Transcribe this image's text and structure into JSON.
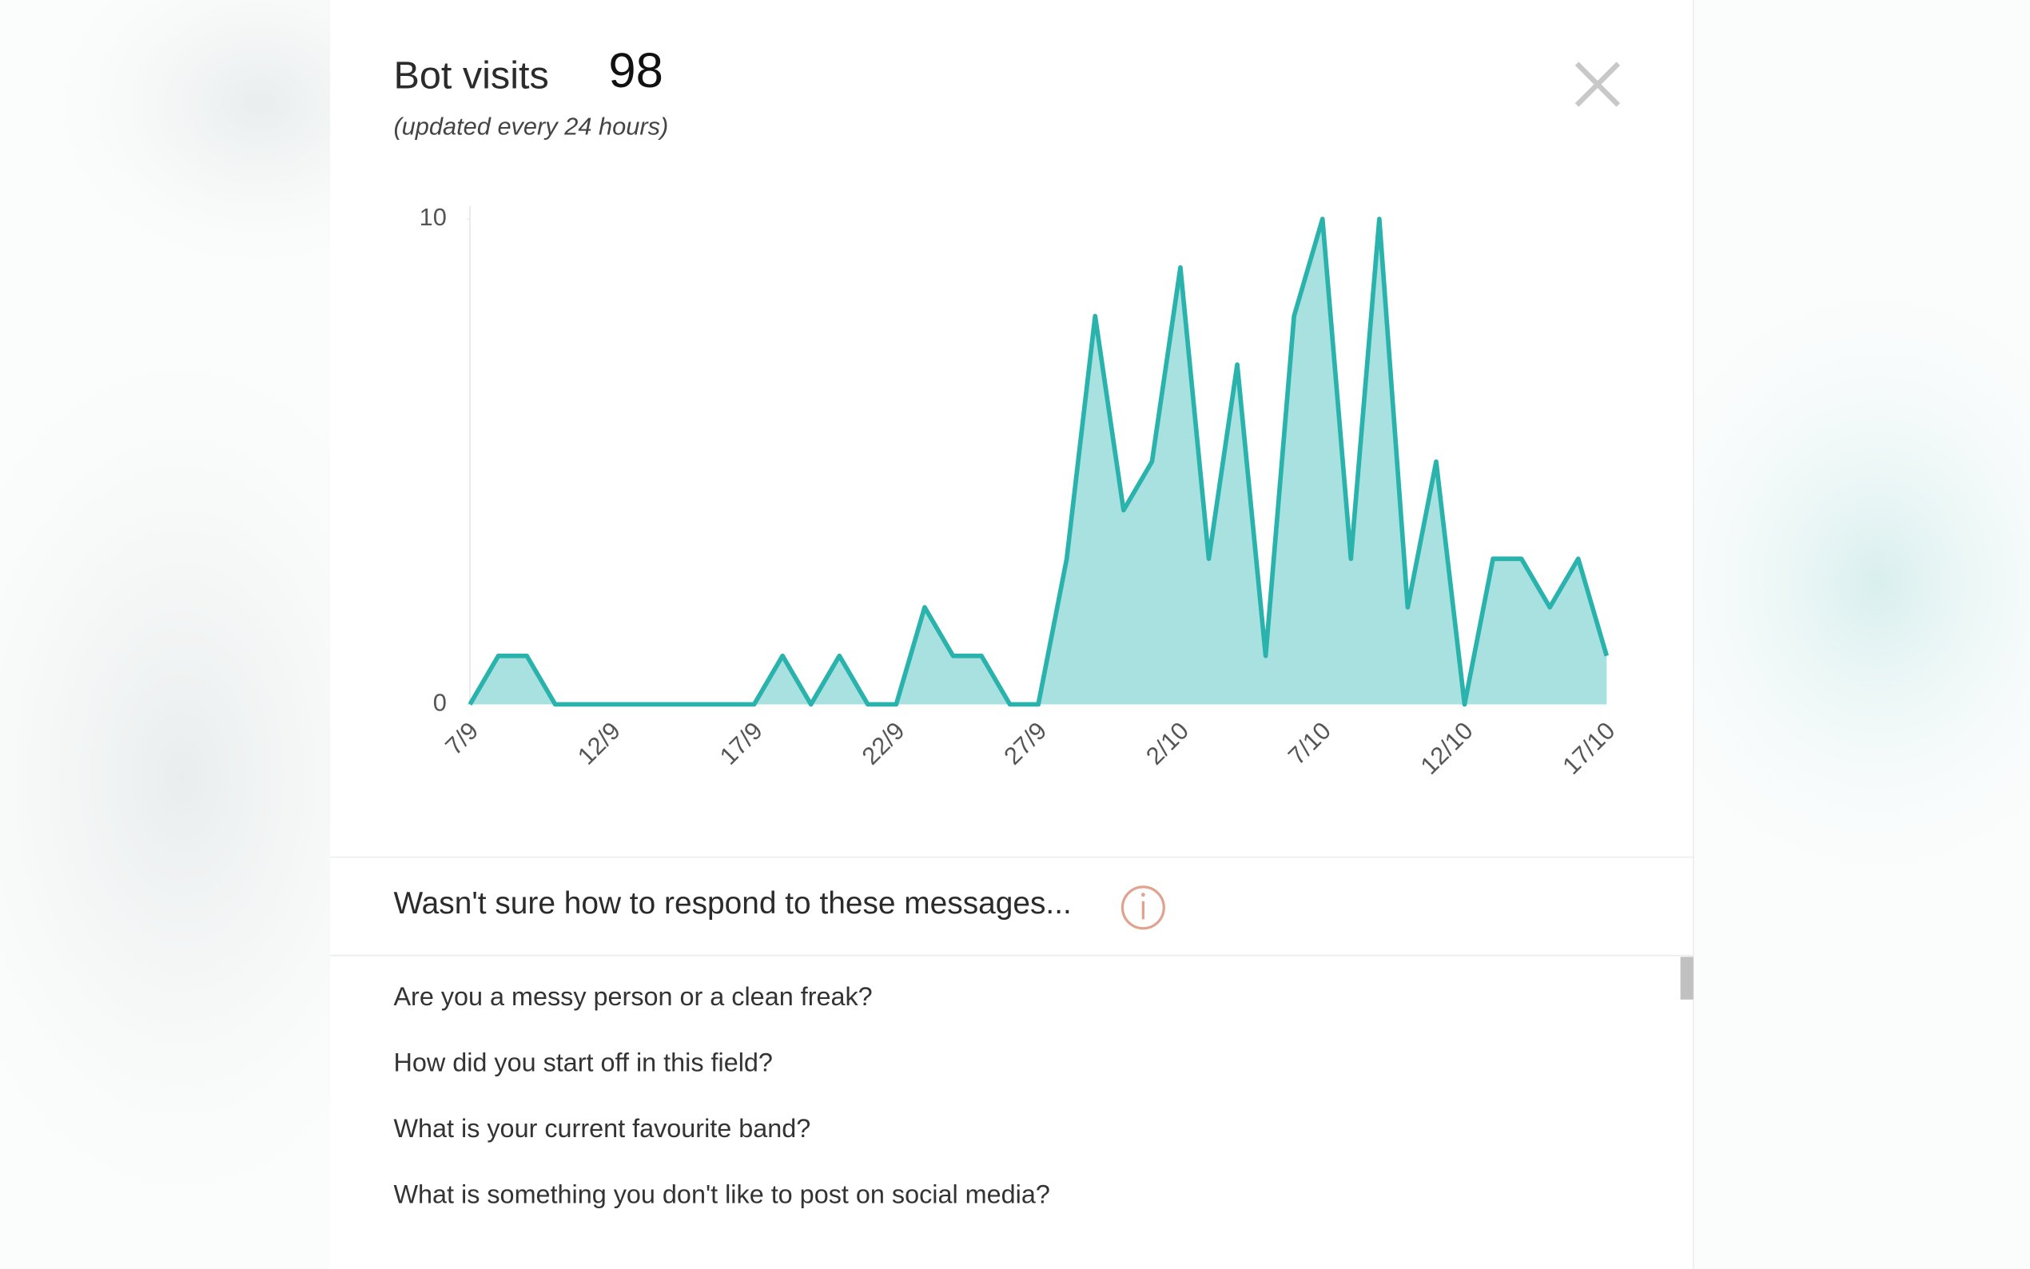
{
  "header": {
    "title": "Bot visits",
    "count": 98,
    "subtitle": "(updated every 24 hours)"
  },
  "chart_data": {
    "type": "area",
    "categories": [
      "7/9",
      null,
      null,
      null,
      null,
      "12/9",
      null,
      null,
      null,
      null,
      "17/9",
      null,
      null,
      null,
      null,
      "22/9",
      null,
      null,
      null,
      null,
      "27/9",
      null,
      null,
      null,
      null,
      "2/10",
      null,
      null,
      null,
      null,
      "7/10",
      null,
      null,
      null,
      null,
      "12/10",
      null,
      null,
      null,
      null,
      "17/10"
    ],
    "values": [
      0,
      1,
      1,
      0,
      0,
      0,
      0,
      0,
      0,
      0,
      0,
      1,
      0,
      1,
      0,
      0,
      2,
      1,
      1,
      0,
      0,
      3,
      8,
      4,
      5,
      9,
      3,
      7,
      1,
      8,
      10,
      3,
      10,
      2,
      5,
      0,
      3,
      3,
      2,
      3,
      1
    ],
    "color": "#2ab3ad",
    "fill": "#a8e1df",
    "ylim": [
      0,
      10
    ],
    "yticks": [
      0,
      10
    ]
  },
  "messages": {
    "heading": "Wasn't sure how to respond to these messages...",
    "items": [
      "Are you a messy person or a clean freak?",
      "How did you start off in this field?",
      "What is your current favourite band?",
      "What is something you don't like to post on social media?"
    ]
  }
}
